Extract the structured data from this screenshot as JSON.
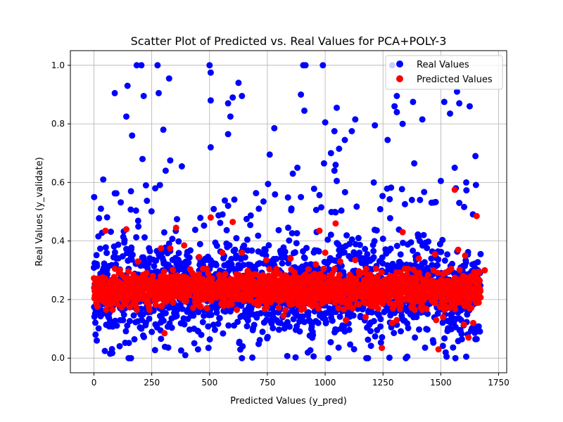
{
  "chart_data": {
    "type": "scatter",
    "title": "Scatter Plot of Predicted vs. Real Values for PCA+POLY-3",
    "xlabel": "Predicted Values (y_pred)",
    "ylabel": "Real Values (y_validate)",
    "xlim": [
      -102,
      1785
    ],
    "ylim": [
      -0.05,
      1.05
    ],
    "xticks": [
      0,
      250,
      500,
      750,
      1000,
      1250,
      1500,
      1750
    ],
    "xtick_labels": [
      "0",
      "250",
      "500",
      "750",
      "1000",
      "1250",
      "1500",
      "1750"
    ],
    "yticks": [
      0.0,
      0.2,
      0.4,
      0.6,
      0.8,
      1.0
    ],
    "ytick_labels": [
      "0.0",
      "0.2",
      "0.4",
      "0.6",
      "0.8",
      "1.0"
    ],
    "grid": true,
    "legend_position": "top-right",
    "point_count_per_series": 1673,
    "series": [
      {
        "name": "Real Values",
        "color": "#0000ff",
        "distribution": "dense band centered near 0.23, spread mostly 0.05–0.5 with outliers up to 1.0",
        "highlight_points": [
          [
            185,
            1.0
          ],
          [
            205,
            1.0
          ],
          [
            275,
            1.0
          ],
          [
            500,
            1.0
          ],
          [
            905,
            1.0
          ],
          [
            915,
            1.0
          ],
          [
            990,
            1.0
          ],
          [
            1290,
            1.0
          ],
          [
            505,
            0.975
          ],
          [
            325,
            0.955
          ],
          [
            145,
            0.93
          ],
          [
            625,
            0.94
          ],
          [
            1570,
            0.91
          ],
          [
            280,
            0.905
          ],
          [
            90,
            0.905
          ],
          [
            215,
            0.895
          ],
          [
            600,
            0.89
          ],
          [
            640,
            0.895
          ],
          [
            1310,
            0.895
          ],
          [
            505,
            0.88
          ],
          [
            580,
            0.87
          ],
          [
            1580,
            0.87
          ],
          [
            1625,
            0.86
          ],
          [
            1380,
            0.875
          ],
          [
            1515,
            0.875
          ],
          [
            1540,
            0.835
          ],
          [
            1300,
            0.86
          ],
          [
            1050,
            0.855
          ],
          [
            895,
            0.9
          ],
          [
            910,
            0.845
          ],
          [
            140,
            0.825
          ],
          [
            590,
            0.825
          ],
          [
            1310,
            0.84
          ],
          [
            1420,
            0.815
          ],
          [
            1130,
            0.815
          ],
          [
            1000,
            0.805
          ],
          [
            1335,
            0.8
          ],
          [
            1215,
            0.795
          ],
          [
            580,
            0.765
          ],
          [
            780,
            0.785
          ],
          [
            1040,
            0.775
          ],
          [
            1115,
            0.775
          ],
          [
            165,
            0.76
          ],
          [
            300,
            0.78
          ],
          [
            1270,
            0.745
          ],
          [
            1085,
            0.745
          ],
          [
            505,
            0.72
          ],
          [
            1060,
            0.715
          ],
          [
            1025,
            0.7
          ],
          [
            760,
            0.695
          ],
          [
            1650,
            0.69
          ],
          [
            330,
            0.675
          ],
          [
            210,
            0.68
          ],
          [
            1560,
            0.65
          ],
          [
            1385,
            0.665
          ],
          [
            380,
            0.655
          ],
          [
            310,
            0.64
          ],
          [
            860,
            0.63
          ],
          [
            880,
            0.65
          ],
          [
            995,
            0.665
          ],
          [
            1045,
            0.66
          ],
          [
            1040,
            0.64
          ],
          [
            1210,
            0.6
          ],
          [
            225,
            0.59
          ],
          [
            265,
            0.58
          ],
          [
            40,
            0.61
          ],
          [
            1500,
            0.605
          ],
          [
            1565,
            0.58
          ],
          [
            1610,
            0.6
          ],
          [
            1050,
            0.605
          ],
          [
            1,
            0.55
          ],
          [
            160,
            0.57
          ],
          [
            30,
            0.51
          ],
          [
            1375,
            0.54
          ],
          [
            1410,
            0.54
          ],
          [
            895,
            0.55
          ],
          [
            1580,
            0.53
          ],
          [
            150,
            0.0
          ],
          [
            160,
            0.0
          ],
          [
            1185,
            0.0
          ],
          [
            1355,
            0.005
          ],
          [
            395,
            0.01
          ],
          [
            450,
            0.03
          ],
          [
            495,
            0.035
          ],
          [
            70,
            0.015
          ],
          [
            1525,
            0.005
          ],
          [
            1610,
            0.005
          ],
          [
            1655,
            0.065
          ],
          [
            12,
            0.06
          ]
        ]
      },
      {
        "name": "Predicted Values",
        "color": "#ff0000",
        "distribution": "tight band between about 0.17 and 0.30 across the full x range",
        "highlight_points": [
          [
            50,
            0.435
          ],
          [
            140,
            0.44
          ],
          [
            355,
            0.445
          ],
          [
            505,
            0.48
          ],
          [
            600,
            0.465
          ],
          [
            1045,
            0.46
          ],
          [
            975,
            0.435
          ],
          [
            1335,
            0.43
          ],
          [
            1560,
            0.575
          ],
          [
            1655,
            0.485
          ],
          [
            1575,
            0.37
          ],
          [
            1605,
            0.35
          ],
          [
            390,
            0.385
          ],
          [
            290,
            0.375
          ],
          [
            330,
            0.375
          ],
          [
            305,
            0.085
          ],
          [
            1245,
            0.035
          ],
          [
            1490,
            0.03
          ],
          [
            1620,
            0.07
          ],
          [
            1640,
            0.12
          ],
          [
            1600,
            0.115
          ],
          [
            1310,
            0.13
          ],
          [
            1290,
            0.12
          ],
          [
            1175,
            0.14
          ],
          [
            1090,
            0.13
          ],
          [
            820,
            0.145
          ],
          [
            240,
            0.165
          ],
          [
            1480,
            0.13
          ],
          [
            1510,
            0.14
          ],
          [
            850,
            0.34
          ],
          [
            960,
            0.32
          ],
          [
            1065,
            0.33
          ],
          [
            1130,
            0.335
          ],
          [
            1405,
            0.34
          ],
          [
            1475,
            0.355
          ],
          [
            555,
            0.36
          ],
          [
            455,
            0.345
          ],
          [
            745,
            0.335
          ],
          [
            1690,
            0.3
          ],
          [
            1000,
            0.36
          ],
          [
            640,
            0.36
          ],
          [
            190,
            0.33
          ]
        ]
      }
    ]
  }
}
